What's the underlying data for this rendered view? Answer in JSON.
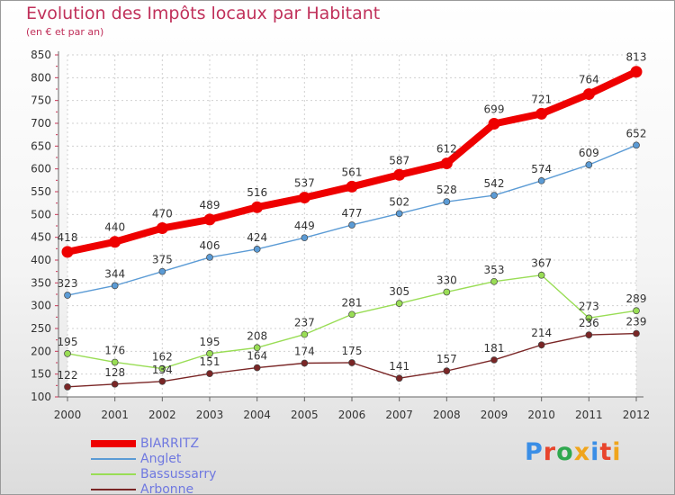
{
  "title": "Evolution des Impôts locaux par Habitant",
  "subtitle": "(en € et par an)",
  "logo_text": "Proxiti",
  "logo_colors": [
    "#3a8ee6",
    "#e8452c",
    "#2fa84f",
    "#f0a51c",
    "#3a8ee6",
    "#e8452c",
    "#f0a51c"
  ],
  "chart_data": {
    "type": "line",
    "title": "Evolution des Impôts locaux par Habitant",
    "subtitle": "(en € et par an)",
    "xlabel": "",
    "ylabel": "",
    "x": [
      "2000",
      "2001",
      "2002",
      "2003",
      "2004",
      "2005",
      "2006",
      "2007",
      "2008",
      "2009",
      "2010",
      "2011",
      "2012"
    ],
    "ylim": [
      100,
      850
    ],
    "yticks": [
      "100",
      "150",
      "200",
      "250",
      "300",
      "350",
      "400",
      "450",
      "500",
      "550",
      "600",
      "650",
      "700",
      "750",
      "800",
      "850"
    ],
    "grid": true,
    "legend_position": "bottom-left",
    "series": [
      {
        "name": "BIARRITZ",
        "color": "#ee0000",
        "values": [
          418,
          440,
          470,
          489,
          516,
          537,
          561,
          587,
          612,
          699,
          721,
          764,
          813
        ]
      },
      {
        "name": "Anglet",
        "color": "#5b9bd5",
        "values": [
          323,
          344,
          375,
          406,
          424,
          449,
          477,
          502,
          528,
          542,
          574,
          609,
          652
        ]
      },
      {
        "name": "Bassussarry",
        "color": "#99dd55",
        "values": [
          195,
          176,
          162,
          195,
          208,
          237,
          281,
          305,
          330,
          353,
          367,
          273,
          289
        ]
      },
      {
        "name": "Arbonne",
        "color": "#7a2626",
        "values": [
          122,
          128,
          134,
          151,
          164,
          174,
          175,
          141,
          157,
          181,
          214,
          236,
          239
        ]
      }
    ]
  }
}
